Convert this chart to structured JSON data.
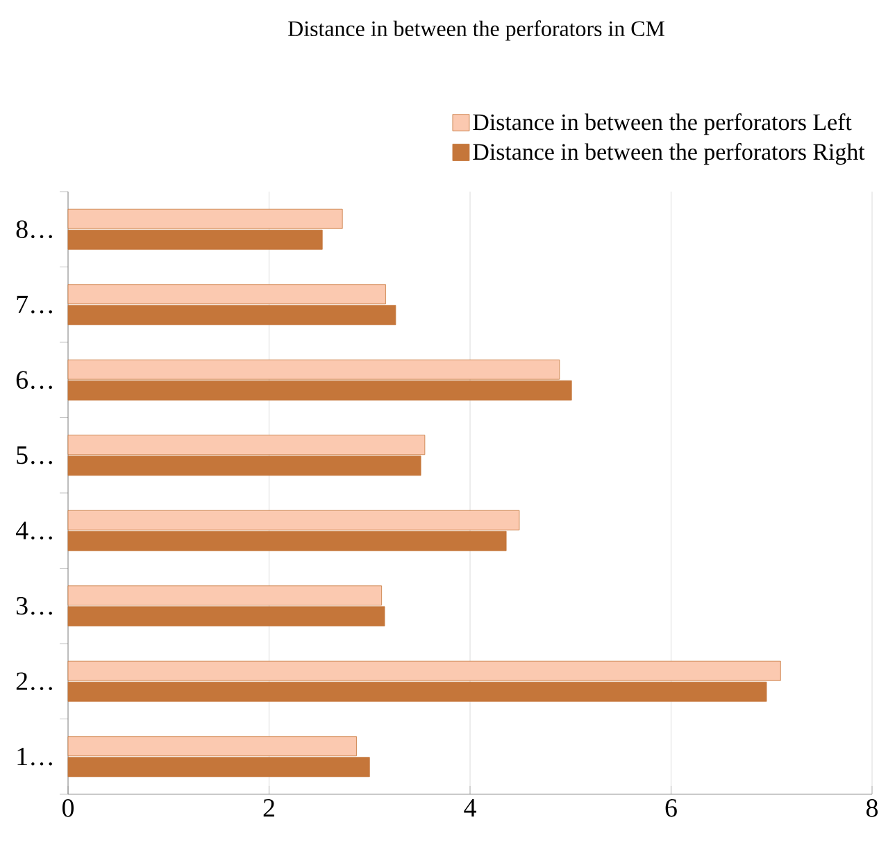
{
  "chart_data": {
    "type": "bar",
    "orientation": "horizontal",
    "title": "Distance in between the perforators in CM",
    "categories": [
      "8…",
      "7…",
      "6…",
      "5…",
      "4…",
      "3…",
      "2…",
      "1…"
    ],
    "series": [
      {
        "name": "Distance in between the perforators Left",
        "color": "#fbc9b0",
        "values": [
          2.73,
          3.16,
          4.89,
          3.55,
          4.49,
          3.12,
          7.09,
          2.87
        ]
      },
      {
        "name": "Distance in between the perforators Right",
        "color": "#c5763a",
        "values": [
          2.53,
          3.26,
          5.01,
          3.51,
          4.36,
          3.15,
          6.95,
          3.0
        ]
      }
    ],
    "xlim": [
      0,
      8
    ],
    "xticks": [
      0,
      2,
      4,
      6,
      8
    ],
    "grid": "x",
    "legend": "top right"
  }
}
